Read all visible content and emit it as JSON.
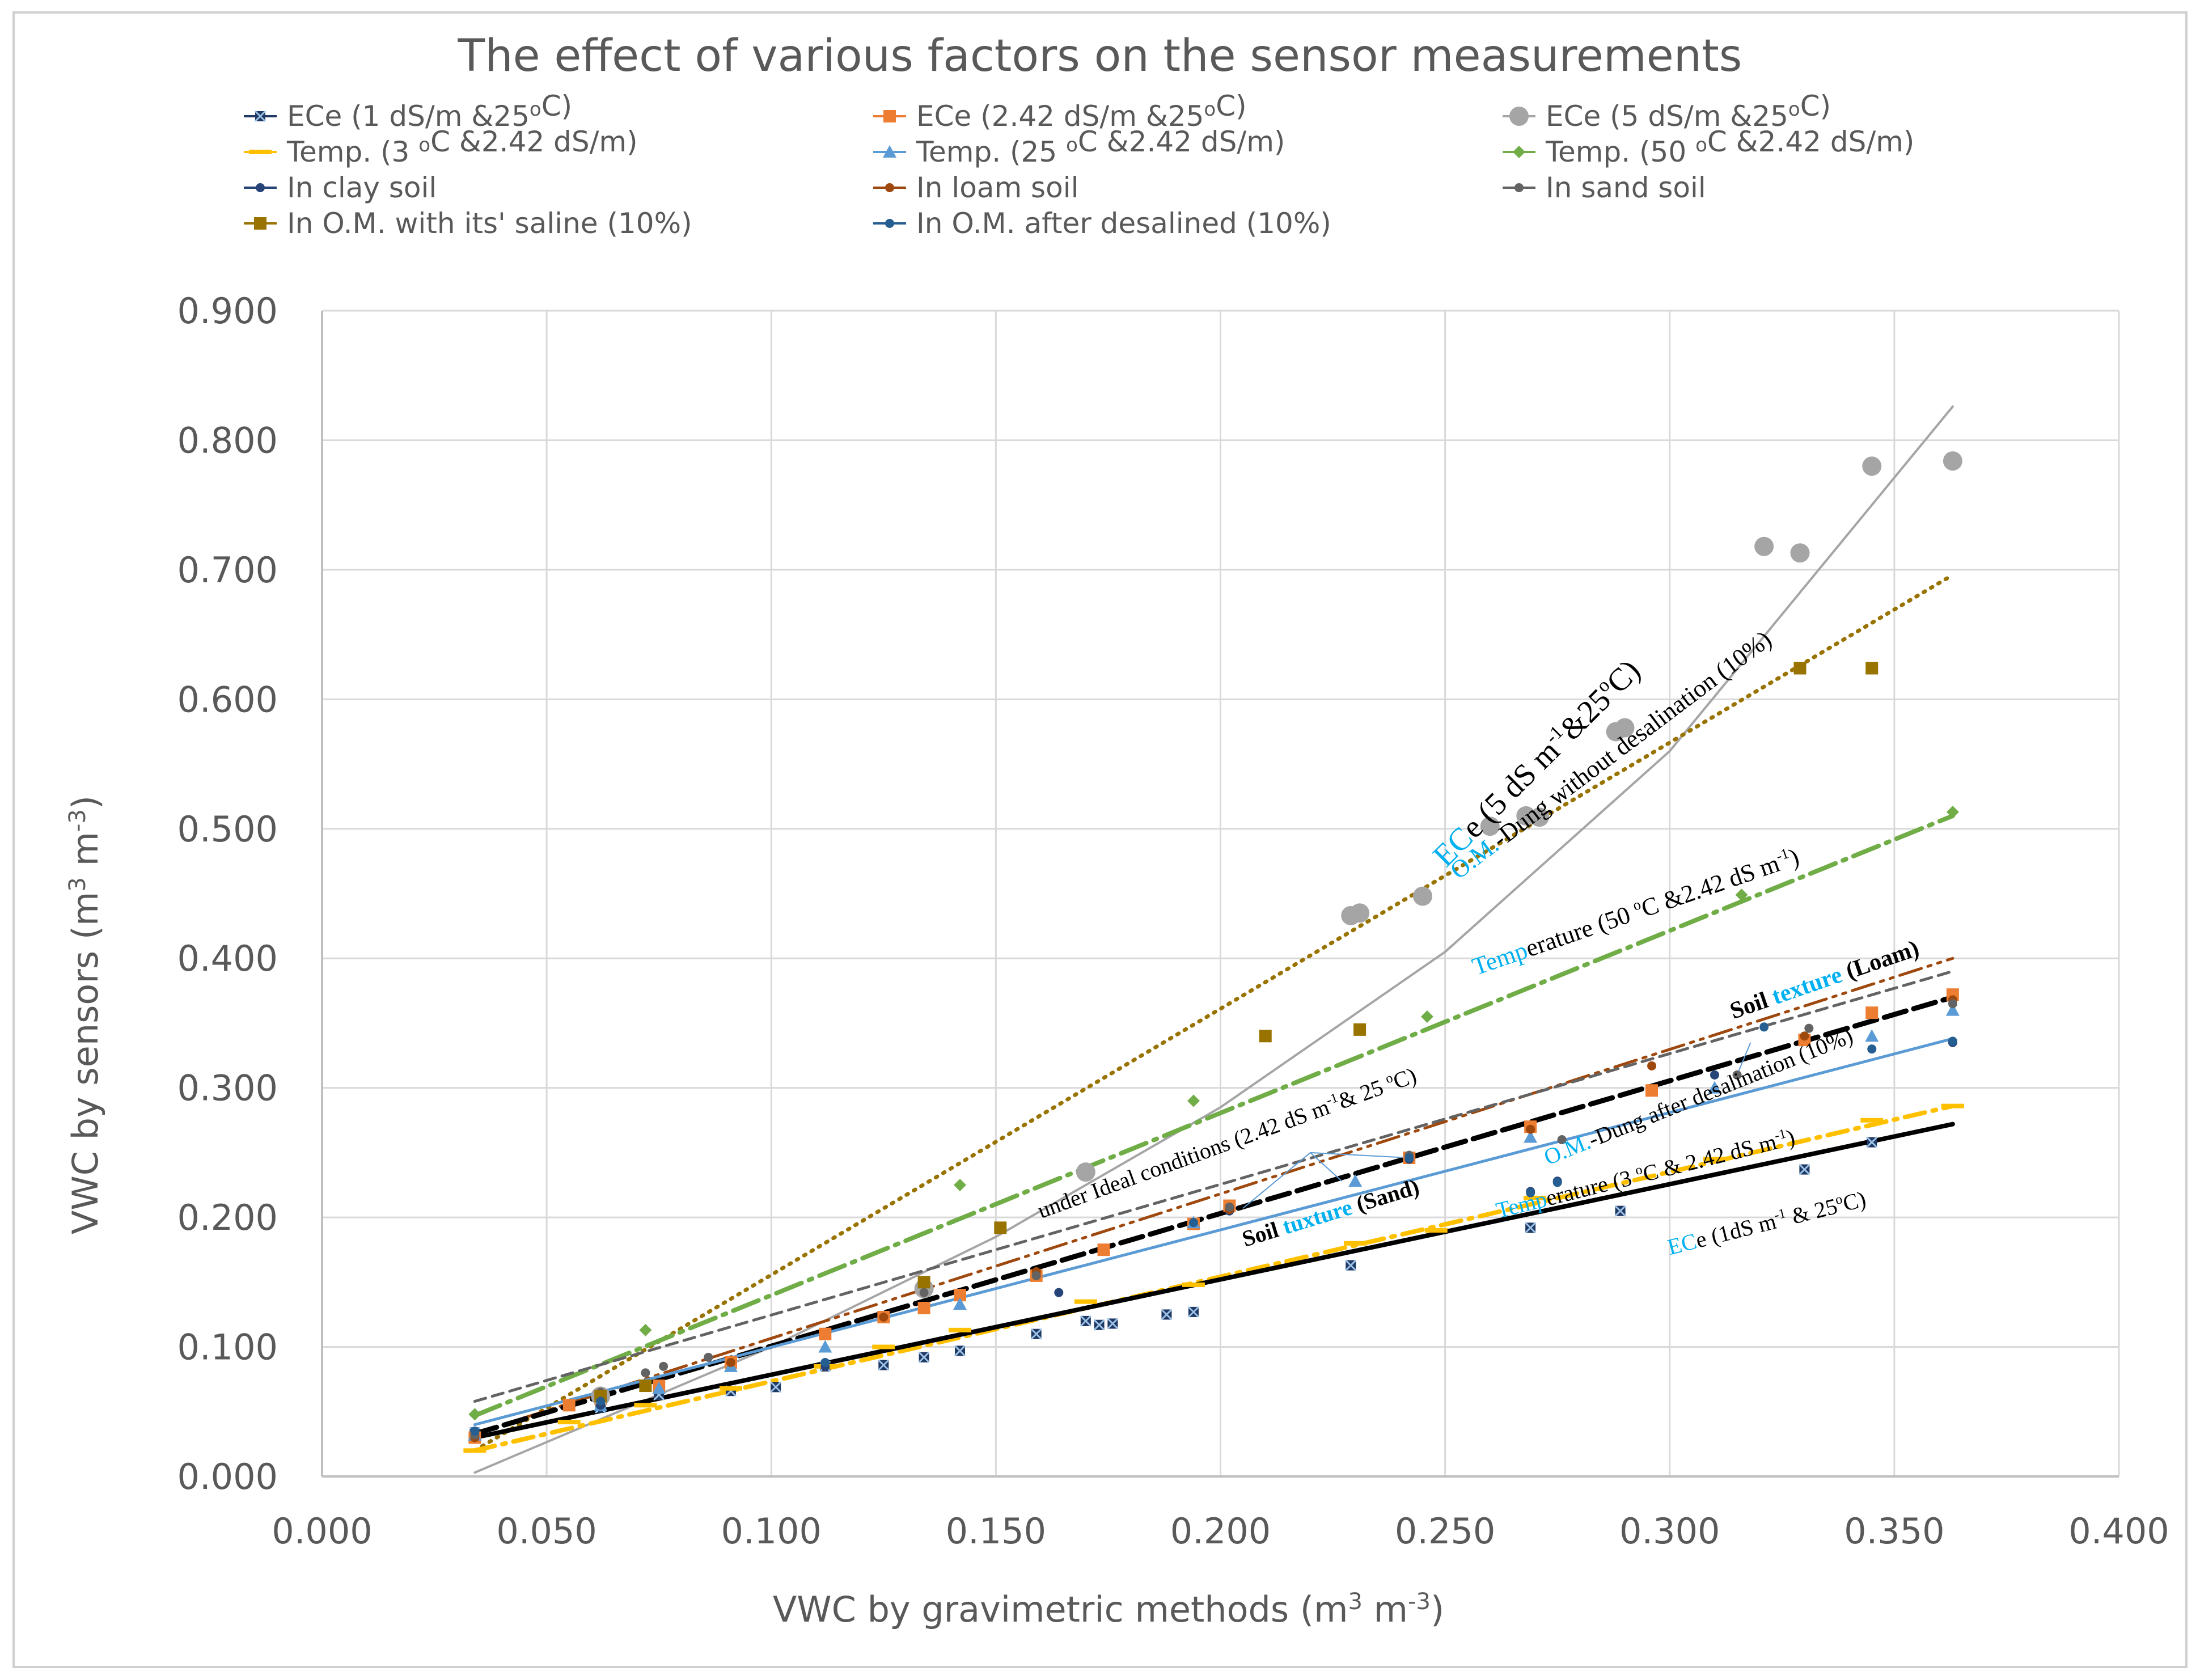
{
  "colors": {
    "gray": "#a5a5a5",
    "navy": "#1f3864",
    "orange": "#ed7d31",
    "gold": "#ffc000",
    "lightblue": "#5b9bd5",
    "green": "#70ad47",
    "darkblue": "#264478",
    "brown": "#9e480e",
    "darkgray": "#636363",
    "olive": "#997300",
    "steel": "#255e91",
    "accent": "#00b0f0",
    "black": "#000000"
  },
  "chart_data": {
    "type": "scatter",
    "title": "The effect of various factors on the sensor measurements",
    "xlabel": {
      "pre": "VWC by gravimetric methods (m",
      "sup1": "3",
      "mid": " m",
      "sup2": "-3",
      "post": ")"
    },
    "ylabel": {
      "pre": "VWC by sensors (m",
      "sup1": "3",
      "mid": " m",
      "sup2": "-3",
      "post": ")"
    },
    "xlim": [
      0,
      0.4
    ],
    "ylim": [
      0,
      0.9
    ],
    "xticks": [
      0,
      0.05,
      0.1,
      0.15,
      0.2,
      0.25,
      0.3,
      0.35,
      0.4
    ],
    "yticks": [
      0,
      0.1,
      0.2,
      0.3,
      0.4,
      0.5,
      0.6,
      0.7,
      0.8,
      0.9
    ],
    "xtick_labels": [
      "0.000",
      "0.050",
      "0.100",
      "0.150",
      "0.200",
      "0.250",
      "0.300",
      "0.350",
      "0.400"
    ],
    "ytick_labels": [
      "0.000",
      "0.100",
      "0.200",
      "0.300",
      "0.400",
      "0.500",
      "0.600",
      "0.700",
      "0.800",
      "0.900"
    ],
    "grid": true,
    "legend": {
      "placement": "top",
      "entries": [
        {
          "key": "ece1",
          "label": "ECe (1 dS/m &25oC)",
          "color": "#1f3864",
          "marker": "x"
        },
        {
          "key": "ece242",
          "label": "ECe (2.42 dS/m &25oC)",
          "color": "#ed7d31",
          "marker": "square"
        },
        {
          "key": "ece5",
          "label": "ECe (5 dS/m &25oC)",
          "color": "#a5a5a5",
          "marker": "circle-large"
        },
        {
          "key": "t3",
          "label": "Temp. (3 oC  &2.42 dS/m)",
          "color": "#ffc000",
          "marker": "dash"
        },
        {
          "key": "t25",
          "label": "Temp. (25 oC  &2.42 dS/m)",
          "color": "#5b9bd5",
          "marker": "triangle"
        },
        {
          "key": "t50",
          "label": "Temp. (50 oC  &2.42 dS/m)",
          "color": "#70ad47",
          "marker": "diamond"
        },
        {
          "key": "clay",
          "label": "In clay soil",
          "color": "#264478",
          "marker": "circle"
        },
        {
          "key": "loam",
          "label": "In loam soil",
          "color": "#9e480e",
          "marker": "circle"
        },
        {
          "key": "sand",
          "label": "In sand soil",
          "color": "#636363",
          "marker": "circle"
        },
        {
          "key": "omsal",
          "label": "In O.M. with its' saline (10%)",
          "color": "#997300",
          "marker": "square"
        },
        {
          "key": "omdes",
          "label": "In O.M. after desalined (10%)",
          "color": "#255e91",
          "marker": "circle"
        }
      ]
    },
    "series": [
      {
        "key": "ece1",
        "name": "ECe (1 dS/m &25oC)",
        "color": "#1f3864",
        "marker": "x",
        "x": [
          0.034,
          0.062,
          0.075,
          0.091,
          0.101,
          0.112,
          0.125,
          0.134,
          0.142,
          0.159,
          0.17,
          0.173,
          0.176,
          0.188,
          0.194,
          0.229,
          0.269,
          0.289,
          0.33,
          0.345
        ],
        "y": [
          0.034,
          0.053,
          0.063,
          0.066,
          0.069,
          0.085,
          0.086,
          0.092,
          0.097,
          0.11,
          0.12,
          0.117,
          0.118,
          0.125,
          0.127,
          0.163,
          0.192,
          0.205,
          0.237,
          0.258
        ]
      },
      {
        "key": "ece242",
        "name": "ECe (2.42 dS/m &25oC)",
        "color": "#ed7d31",
        "marker": "square",
        "x": [
          0.034,
          0.055,
          0.062,
          0.075,
          0.091,
          0.112,
          0.125,
          0.134,
          0.142,
          0.159,
          0.174,
          0.194,
          0.202,
          0.242,
          0.269,
          0.296,
          0.33,
          0.345,
          0.363
        ],
        "y": [
          0.03,
          0.055,
          0.06,
          0.07,
          0.088,
          0.11,
          0.123,
          0.13,
          0.14,
          0.155,
          0.175,
          0.195,
          0.209,
          0.246,
          0.27,
          0.298,
          0.337,
          0.358,
          0.372
        ]
      },
      {
        "key": "ece5",
        "name": "ECe (5 dS/m &25oC)",
        "color": "#a5a5a5",
        "marker": "circle-large",
        "x": [
          0.062,
          0.134,
          0.17,
          0.229,
          0.231,
          0.245,
          0.26,
          0.268,
          0.271,
          0.288,
          0.29,
          0.321,
          0.329,
          0.345,
          0.363
        ],
        "y": [
          0.062,
          0.145,
          0.235,
          0.433,
          0.435,
          0.448,
          0.502,
          0.51,
          0.509,
          0.575,
          0.578,
          0.718,
          0.713,
          0.78,
          0.784
        ]
      },
      {
        "key": "t3",
        "name": "Temp. (3 oC  &2.42 dS/m)",
        "color": "#ffc000",
        "marker": "dash",
        "x": [
          0.034,
          0.055,
          0.072,
          0.091,
          0.112,
          0.125,
          0.142,
          0.17,
          0.194,
          0.23,
          0.248,
          0.27,
          0.31,
          0.345,
          0.363
        ],
        "y": [
          0.02,
          0.042,
          0.055,
          0.068,
          0.085,
          0.1,
          0.113,
          0.135,
          0.148,
          0.18,
          0.19,
          0.215,
          0.245,
          0.275,
          0.286
        ]
      },
      {
        "key": "t25",
        "name": "Temp. (25 oC  &2.42 dS/m)",
        "color": "#5b9bd5",
        "marker": "triangle",
        "x": [
          0.034,
          0.062,
          0.075,
          0.091,
          0.112,
          0.142,
          0.194,
          0.23,
          0.269,
          0.31,
          0.345,
          0.363
        ],
        "y": [
          0.032,
          0.055,
          0.068,
          0.085,
          0.1,
          0.133,
          0.196,
          0.228,
          0.262,
          0.3,
          0.34,
          0.36
        ]
      },
      {
        "key": "t50",
        "name": "Temp. (50 oC  &2.42 dS/m)",
        "color": "#70ad47",
        "marker": "diamond",
        "x": [
          0.034,
          0.072,
          0.142,
          0.194,
          0.246,
          0.316,
          0.363
        ],
        "y": [
          0.048,
          0.113,
          0.225,
          0.29,
          0.355,
          0.449,
          0.513
        ]
      },
      {
        "key": "clay",
        "name": "In clay soil",
        "color": "#264478",
        "marker": "circle",
        "x": [
          0.034,
          0.062,
          0.112,
          0.164,
          0.202,
          0.242,
          0.269,
          0.275,
          0.31,
          0.363
        ],
        "y": [
          0.035,
          0.055,
          0.085,
          0.142,
          0.205,
          0.245,
          0.22,
          0.228,
          0.31,
          0.335
        ]
      },
      {
        "key": "loam",
        "name": "In loam soil",
        "color": "#9e480e",
        "marker": "circle",
        "x": [
          0.034,
          0.062,
          0.091,
          0.125,
          0.159,
          0.202,
          0.269,
          0.296,
          0.33,
          0.363
        ],
        "y": [
          0.03,
          0.06,
          0.088,
          0.123,
          0.158,
          0.206,
          0.268,
          0.317,
          0.34,
          0.368
        ]
      },
      {
        "key": "sand",
        "name": "In sand soil",
        "color": "#636363",
        "marker": "circle",
        "x": [
          0.034,
          0.062,
          0.072,
          0.076,
          0.086,
          0.134,
          0.159,
          0.202,
          0.242,
          0.276,
          0.315,
          0.331,
          0.363
        ],
        "y": [
          0.032,
          0.065,
          0.08,
          0.085,
          0.092,
          0.142,
          0.155,
          0.208,
          0.248,
          0.26,
          0.31,
          0.346,
          0.365
        ]
      },
      {
        "key": "omsal",
        "name": "In O.M. with its' saline (10%)",
        "color": "#997300",
        "marker": "square",
        "x": [
          0.062,
          0.072,
          0.134,
          0.151,
          0.21,
          0.231,
          0.329,
          0.345
        ],
        "y": [
          0.062,
          0.07,
          0.15,
          0.192,
          0.34,
          0.345,
          0.624,
          0.624
        ]
      },
      {
        "key": "omdes",
        "name": "In O.M. after desalined (10%)",
        "color": "#255e91",
        "marker": "circle",
        "x": [
          0.034,
          0.062,
          0.112,
          0.194,
          0.242,
          0.269,
          0.275,
          0.321,
          0.345,
          0.363
        ],
        "y": [
          0.035,
          0.058,
          0.088,
          0.196,
          0.246,
          0.219,
          0.227,
          0.347,
          0.33,
          0.336
        ]
      }
    ],
    "trendlines": [
      {
        "key": "tr-ece5",
        "color": "#a5a5a5",
        "width": 4,
        "dash": "",
        "x": [
          0.034,
          0.1,
          0.15,
          0.2,
          0.25,
          0.3,
          0.363
        ],
        "y": [
          0.003,
          0.1,
          0.185,
          0.285,
          0.405,
          0.56,
          0.826
        ]
      },
      {
        "key": "tr-omsal",
        "color": "#997300",
        "width": 7,
        "dash": "3 12",
        "x": [
          0.034,
          0.363
        ],
        "y": [
          0.02,
          0.696
        ]
      },
      {
        "key": "tr-t50",
        "color": "#70ad47",
        "width": 8,
        "dash": "48 14 6 14",
        "x": [
          0.034,
          0.363
        ],
        "y": [
          0.047,
          0.51
        ]
      },
      {
        "key": "tr-loam",
        "color": "#9e480e",
        "width": 5,
        "dash": "40 12 6 12 6 12",
        "x": [
          0.034,
          0.363
        ],
        "y": [
          0.033,
          0.4
        ]
      },
      {
        "key": "tr-sand",
        "color": "#636363",
        "width": 5,
        "dash": "20 12",
        "x": [
          0.034,
          0.363
        ],
        "y": [
          0.058,
          0.39
        ]
      },
      {
        "key": "tr-ideal",
        "color": "#000000",
        "width": 9,
        "dash": "40 14",
        "x": [
          0.034,
          0.363
        ],
        "y": [
          0.033,
          0.37
        ]
      },
      {
        "key": "tr-omdes",
        "color": "#5b9bd5",
        "width": 5,
        "dash": "",
        "x": [
          0.034,
          0.363
        ],
        "y": [
          0.04,
          0.338
        ]
      },
      {
        "key": "tr-t3",
        "color": "#ffc000",
        "width": 8,
        "dash": "36 14 6 14",
        "x": [
          0.034,
          0.363
        ],
        "y": [
          0.02,
          0.286
        ]
      },
      {
        "key": "tr-ece1",
        "color": "#000000",
        "width": 8,
        "dash": "",
        "x": [
          0.034,
          0.363
        ],
        "y": [
          0.03,
          0.272
        ]
      }
    ],
    "annotations": [
      {
        "key": "ann-ece5",
        "x": 0.272,
        "y": 0.545,
        "angle": -45,
        "size": 56,
        "parts": [
          {
            "t": "EC",
            "c": "#00b0f0"
          },
          {
            "t": "e (5 dS m",
            "c": "#000000"
          },
          {
            "t": "-1",
            "c": "#000000",
            "sup": true
          },
          {
            "t": "&25",
            "c": "#000000"
          },
          {
            "t": "o",
            "c": "#000000",
            "sup": true
          },
          {
            "t": "C)",
            "c": "#000000"
          }
        ]
      },
      {
        "key": "ann-omsal",
        "x": 0.288,
        "y": 0.552,
        "angle": -37,
        "size": 44,
        "parts": [
          {
            "t": "O.M.",
            "c": "#00b0f0"
          },
          {
            "t": "-Dung without desalination (10%)",
            "c": "#000000"
          }
        ]
      },
      {
        "key": "ann-t50",
        "x": 0.293,
        "y": 0.43,
        "angle": -19,
        "size": 44,
        "parts": [
          {
            "t": "Temp",
            "c": "#00b0f0"
          },
          {
            "t": "erature (50 ",
            "c": "#000000"
          },
          {
            "t": "o",
            "c": "#000000",
            "sup": true
          },
          {
            "t": "C &2.42 dS m",
            "c": "#000000"
          },
          {
            "t": "-1",
            "c": "#000000",
            "sup": true
          },
          {
            "t": ")",
            "c": "#000000"
          }
        ]
      },
      {
        "key": "ann-ideal",
        "x": 0.202,
        "y": 0.252,
        "angle": -20,
        "size": 40,
        "parts": [
          {
            "t": "under Ideal conditions (2.42 dS m",
            "c": "#000000"
          },
          {
            "t": "-1",
            "c": "#000000",
            "sup": true
          },
          {
            "t": "& 25 ",
            "c": "#000000"
          },
          {
            "t": "o",
            "c": "#000000",
            "sup": true
          },
          {
            "t": "C)",
            "c": "#000000"
          }
        ]
      },
      {
        "key": "ann-loam",
        "x": 0.335,
        "y": 0.378,
        "angle": -19,
        "size": 42,
        "parts": [
          {
            "t": "Soil ",
            "c": "#000000",
            "b": true
          },
          {
            "t": "texture",
            "c": "#00b0f0",
            "b": true
          },
          {
            "t": " (Loam)",
            "c": "#000000",
            "b": true
          }
        ]
      },
      {
        "key": "ann-omdes",
        "x": 0.307,
        "y": 0.288,
        "angle": -22,
        "size": 40,
        "parts": [
          {
            "t": "O.M.",
            "c": "#00b0f0"
          },
          {
            "t": "-Dung after desalination (10%)",
            "c": "#000000"
          }
        ]
      },
      {
        "key": "ann-sand",
        "x": 0.225,
        "y": 0.198,
        "angle": -17,
        "size": 40,
        "parts": [
          {
            "t": "Soil ",
            "c": "#000000",
            "b": true
          },
          {
            "t": "tuxture",
            "c": "#00b0f0",
            "b": true
          },
          {
            "t": " (Sand)",
            "c": "#000000",
            "b": true
          }
        ]
      },
      {
        "key": "ann-t3",
        "x": 0.295,
        "y": 0.228,
        "angle": -14,
        "size": 40,
        "parts": [
          {
            "t": "Temp",
            "c": "#00b0f0"
          },
          {
            "t": "erature (3 ",
            "c": "#000000"
          },
          {
            "t": "o",
            "c": "#000000",
            "sup": true
          },
          {
            "t": "C & 2.42 dS m",
            "c": "#000000"
          },
          {
            "t": "-1",
            "c": "#000000",
            "sup": true
          },
          {
            "t": ")",
            "c": "#000000"
          }
        ]
      },
      {
        "key": "ann-ece1",
        "x": 0.322,
        "y": 0.19,
        "angle": -14,
        "size": 40,
        "parts": [
          {
            "t": "EC",
            "c": "#00b0f0"
          },
          {
            "t": "e (1dS m",
            "c": "#000000"
          },
          {
            "t": "-1",
            "c": "#000000",
            "sup": true
          },
          {
            "t": " & 25",
            "c": "#000000"
          },
          {
            "t": "o",
            "c": "#000000",
            "sup": true
          },
          {
            "t": "C)",
            "c": "#000000"
          }
        ]
      }
    ]
  }
}
